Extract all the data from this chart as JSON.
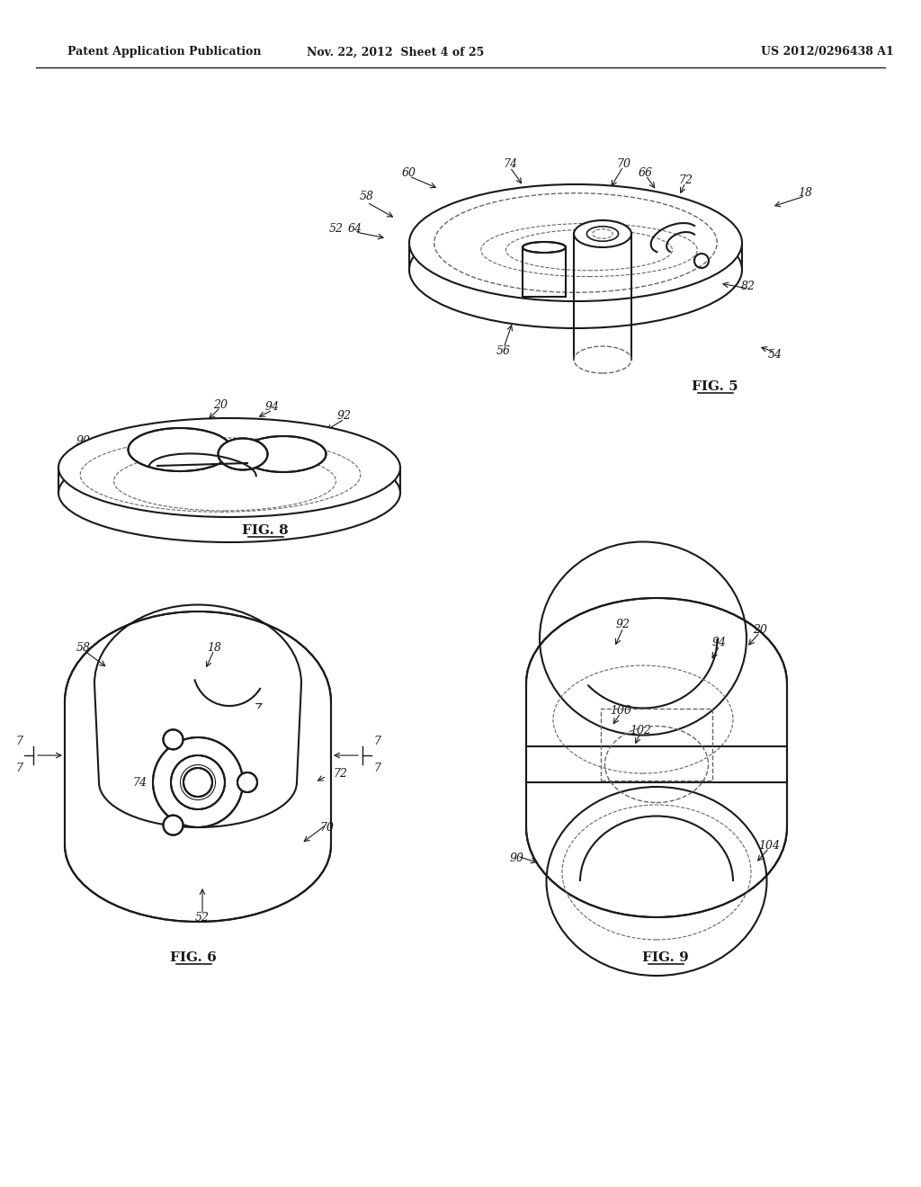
{
  "bg_color": "#ffffff",
  "line_color": "#1a1a1a",
  "dashed_color": "#666666",
  "header_left": "Patent Application Publication",
  "header_mid": "Nov. 22, 2012  Sheet 4 of 25",
  "header_right": "US 2012/0296438 A1",
  "fig5_label": "FIG. 5",
  "fig6_label": "FIG. 6",
  "fig8_label": "FIG. 8",
  "fig9_label": "FIG. 9"
}
